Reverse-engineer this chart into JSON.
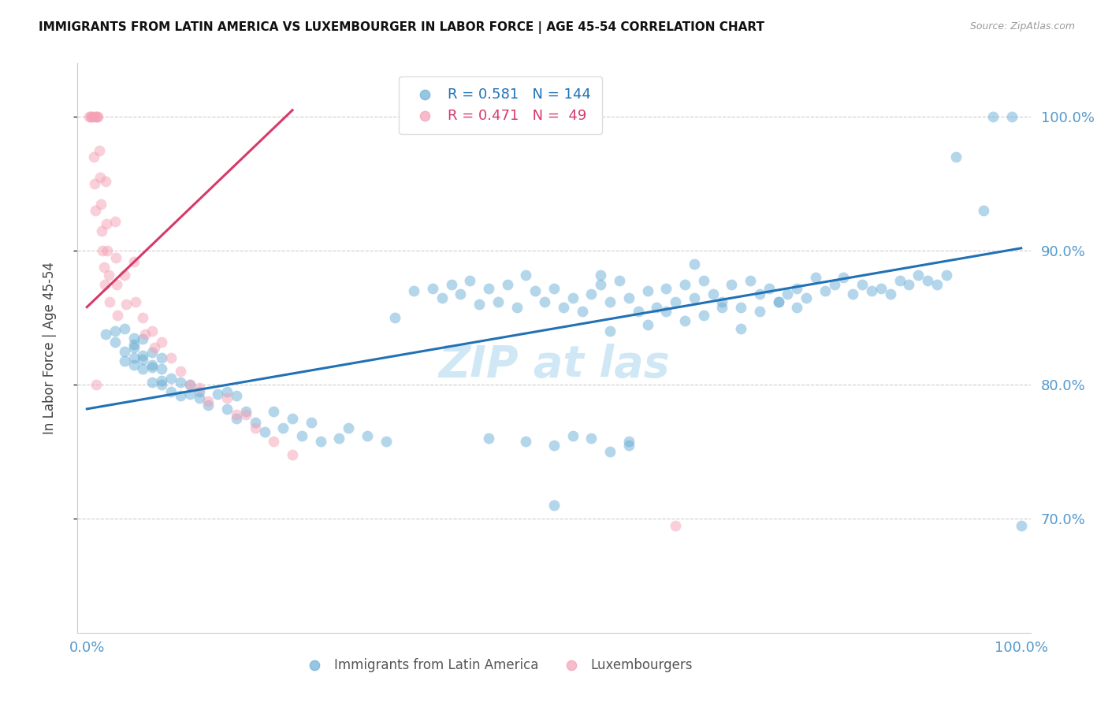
{
  "title": "IMMIGRANTS FROM LATIN AMERICA VS LUXEMBOURGER IN LABOR FORCE | AGE 45-54 CORRELATION CHART",
  "source": "Source: ZipAtlas.com",
  "ylabel": "In Labor Force | Age 45-54",
  "y_tick_values": [
    0.7,
    0.8,
    0.9,
    1.0
  ],
  "x_range": [
    -0.01,
    1.01
  ],
  "y_range": [
    0.615,
    1.04
  ],
  "legend_blue_R": "0.581",
  "legend_blue_N": "144",
  "legend_pink_R": "0.471",
  "legend_pink_N": "49",
  "blue_color": "#6baed6",
  "pink_color": "#f4a0b5",
  "blue_line_color": "#2171b5",
  "pink_line_color": "#d63a6a",
  "grid_color": "#cccccc",
  "axis_label_color": "#5599cc",
  "watermark_color": "#d0e8f5",
  "blue_scatter_x": [
    0.02,
    0.03,
    0.03,
    0.04,
    0.04,
    0.04,
    0.05,
    0.05,
    0.05,
    0.05,
    0.05,
    0.06,
    0.06,
    0.06,
    0.06,
    0.07,
    0.07,
    0.07,
    0.07,
    0.08,
    0.08,
    0.08,
    0.08,
    0.09,
    0.09,
    0.1,
    0.1,
    0.11,
    0.11,
    0.12,
    0.12,
    0.13,
    0.14,
    0.15,
    0.15,
    0.16,
    0.16,
    0.17,
    0.18,
    0.19,
    0.2,
    0.21,
    0.22,
    0.23,
    0.24,
    0.25,
    0.27,
    0.28,
    0.3,
    0.32,
    0.33,
    0.35,
    0.37,
    0.38,
    0.39,
    0.4,
    0.41,
    0.42,
    0.43,
    0.44,
    0.45,
    0.46,
    0.47,
    0.48,
    0.49,
    0.5,
    0.51,
    0.52,
    0.53,
    0.54,
    0.55,
    0.55,
    0.56,
    0.57,
    0.58,
    0.59,
    0.6,
    0.61,
    0.62,
    0.63,
    0.64,
    0.65,
    0.65,
    0.66,
    0.67,
    0.68,
    0.69,
    0.7,
    0.71,
    0.72,
    0.73,
    0.74,
    0.75,
    0.76,
    0.77,
    0.78,
    0.79,
    0.8,
    0.81,
    0.82,
    0.83,
    0.84,
    0.85,
    0.86,
    0.87,
    0.88,
    0.89,
    0.9,
    0.91,
    0.92,
    0.56,
    0.6,
    0.62,
    0.64,
    0.66,
    0.68,
    0.7,
    0.72,
    0.74,
    0.76,
    0.54,
    0.58,
    0.43,
    0.47,
    0.5,
    0.52,
    0.56,
    0.58,
    0.93,
    0.96,
    0.97,
    0.99,
    1.0,
    0.5
  ],
  "blue_scatter_y": [
    0.838,
    0.832,
    0.84,
    0.825,
    0.818,
    0.842,
    0.83,
    0.82,
    0.835,
    0.815,
    0.828,
    0.822,
    0.812,
    0.834,
    0.819,
    0.824,
    0.813,
    0.802,
    0.815,
    0.803,
    0.82,
    0.812,
    0.8,
    0.795,
    0.805,
    0.802,
    0.792,
    0.8,
    0.793,
    0.795,
    0.79,
    0.785,
    0.793,
    0.782,
    0.795,
    0.775,
    0.792,
    0.78,
    0.772,
    0.765,
    0.78,
    0.768,
    0.775,
    0.762,
    0.772,
    0.758,
    0.76,
    0.768,
    0.762,
    0.758,
    0.85,
    0.87,
    0.872,
    0.865,
    0.875,
    0.868,
    0.878,
    0.86,
    0.872,
    0.862,
    0.875,
    0.858,
    0.882,
    0.87,
    0.862,
    0.872,
    0.858,
    0.865,
    0.855,
    0.868,
    0.875,
    0.882,
    0.862,
    0.878,
    0.865,
    0.855,
    0.87,
    0.858,
    0.872,
    0.862,
    0.875,
    0.89,
    0.865,
    0.878,
    0.868,
    0.862,
    0.875,
    0.858,
    0.878,
    0.868,
    0.872,
    0.862,
    0.868,
    0.872,
    0.865,
    0.88,
    0.87,
    0.875,
    0.88,
    0.868,
    0.875,
    0.87,
    0.872,
    0.868,
    0.878,
    0.875,
    0.882,
    0.878,
    0.875,
    0.882,
    0.84,
    0.845,
    0.855,
    0.848,
    0.852,
    0.858,
    0.842,
    0.855,
    0.862,
    0.858,
    0.76,
    0.755,
    0.76,
    0.758,
    0.755,
    0.762,
    0.75,
    0.758,
    0.97,
    0.93,
    1.0,
    1.0,
    0.695,
    0.71
  ],
  "pink_scatter_x": [
    0.002,
    0.004,
    0.005,
    0.006,
    0.007,
    0.008,
    0.009,
    0.01,
    0.011,
    0.012,
    0.013,
    0.014,
    0.015,
    0.016,
    0.017,
    0.018,
    0.019,
    0.02,
    0.021,
    0.022,
    0.023,
    0.024,
    0.03,
    0.031,
    0.032,
    0.033,
    0.04,
    0.042,
    0.05,
    0.052,
    0.06,
    0.062,
    0.07,
    0.072,
    0.08,
    0.09,
    0.1,
    0.11,
    0.12,
    0.13,
    0.15,
    0.16,
    0.17,
    0.18,
    0.2,
    0.22,
    0.008,
    0.01,
    0.63
  ],
  "pink_scatter_y": [
    1.0,
    1.0,
    1.0,
    1.0,
    0.97,
    0.95,
    0.93,
    1.0,
    1.0,
    1.0,
    0.975,
    0.955,
    0.935,
    0.915,
    0.9,
    0.888,
    0.875,
    0.952,
    0.92,
    0.9,
    0.882,
    0.862,
    0.922,
    0.895,
    0.875,
    0.852,
    0.882,
    0.86,
    0.892,
    0.862,
    0.85,
    0.838,
    0.84,
    0.828,
    0.832,
    0.82,
    0.81,
    0.8,
    0.798,
    0.788,
    0.79,
    0.778,
    0.778,
    0.768,
    0.758,
    0.748,
    1.0,
    0.8,
    0.695
  ],
  "blue_line_x": [
    0.0,
    1.0
  ],
  "blue_line_y": [
    0.782,
    0.902
  ],
  "pink_line_x": [
    0.0,
    0.22
  ],
  "pink_line_y": [
    0.858,
    1.005
  ]
}
